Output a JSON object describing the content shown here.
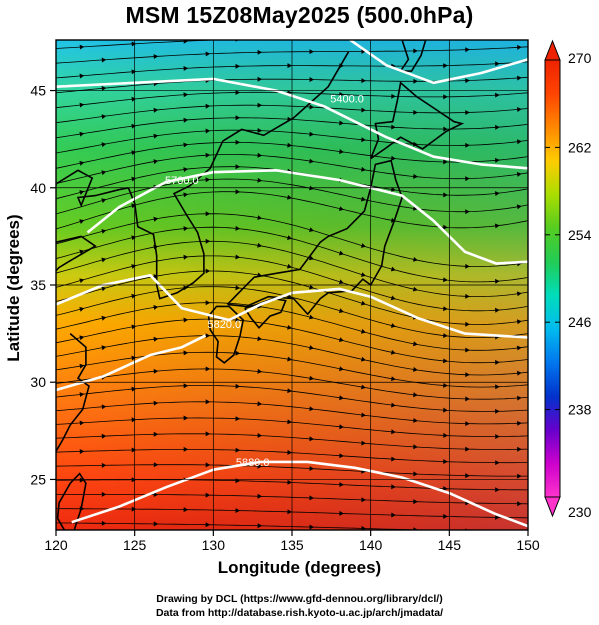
{
  "title": "MSM 15Z08May2025 (500.0hPa)",
  "x_axis": {
    "label": "Longitude (degrees)",
    "ticks": [
      "120",
      "125",
      "130",
      "135",
      "140",
      "145",
      "150"
    ]
  },
  "y_axis": {
    "label": "Latitude  (degrees)",
    "ticks": [
      "25",
      "30",
      "35",
      "40",
      "45"
    ]
  },
  "colorbar": {
    "ticks": [
      "270",
      "262",
      "254",
      "246",
      "238",
      "230"
    ],
    "min": 230,
    "max": 270,
    "colors": [
      "#ff33cc",
      "#cc00cc",
      "#6600cc",
      "#0033cc",
      "#0077ee",
      "#00bbee",
      "#00ddbb",
      "#22cc55",
      "#55cc22",
      "#aadd00",
      "#ffcc00",
      "#ff8800",
      "#ff4400",
      "#ee2200"
    ]
  },
  "contour_labels": [
    "5400.0",
    "5700.0",
    "5820.0",
    "5880.0"
  ],
  "credits": {
    "line1": "Drawing by DCL (https://www.gfd-dennou.org/library/dcl/)",
    "line2": "Data from http://database.rish.kyoto-u.ac.jp/arch/jmadata/"
  },
  "map": {
    "lon_range": [
      120,
      150
    ],
    "lat_range": [
      22.4,
      47.6
    ],
    "field": "temperature at 500hPa (K)",
    "field_gradient": [
      {
        "lat": 47.6,
        "color": "#22c4e8"
      },
      {
        "lat": 45.0,
        "color": "#33d6a0"
      },
      {
        "lat": 42.0,
        "color": "#33cc55"
      },
      {
        "lat": 38.0,
        "color": "#66cc22"
      },
      {
        "lat": 35.5,
        "color": "#cccc11"
      },
      {
        "lat": 33.0,
        "color": "#ffaa00"
      },
      {
        "lat": 29.0,
        "color": "#ff7711"
      },
      {
        "lat": 25.0,
        "color": "#ff4411"
      },
      {
        "lat": 22.4,
        "color": "#ee2a10"
      }
    ]
  }
}
